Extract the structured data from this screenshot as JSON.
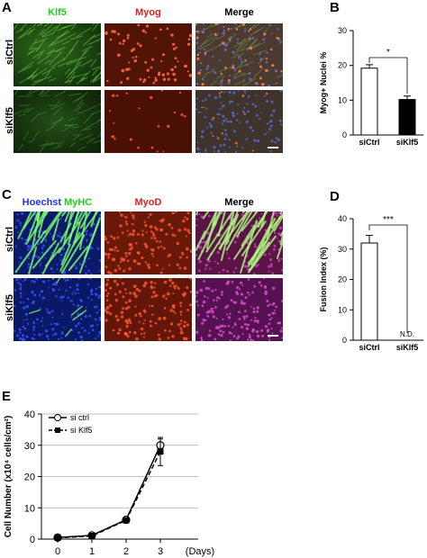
{
  "panelA": {
    "letter": "A",
    "columns": [
      "Klf5",
      "Myog",
      "Merge"
    ],
    "rows": [
      "siCtrl",
      "siKlf5"
    ],
    "colors": {
      "Klf5": "#22cc22",
      "Myog": "#dd2222",
      "Merge": "#000000"
    }
  },
  "panelC": {
    "letter": "C",
    "columns": [
      {
        "parts": [
          {
            "text": "Hoechst",
            "color": "#2233ee"
          },
          {
            "text": " MyHC",
            "color": "#22cc22"
          }
        ]
      },
      {
        "parts": [
          {
            "text": "MyoD",
            "color": "#dd2222"
          }
        ]
      },
      {
        "parts": [
          {
            "text": "Merge",
            "color": "#000000"
          }
        ]
      }
    ],
    "rows": [
      "siCtrl",
      "siKlf5"
    ]
  },
  "panelB": {
    "letter": "B",
    "chart_data": {
      "type": "bar",
      "categories": [
        "siCtrl",
        "siKlf5"
      ],
      "values": [
        19.2,
        10.2
      ],
      "errors": [
        1.0,
        1.0
      ],
      "bar_colors": [
        "#ffffff",
        "#000000"
      ],
      "ylabel": "Myog+ Nuclei %",
      "ylim": [
        0,
        30
      ],
      "yticks": [
        0,
        10,
        20,
        30
      ],
      "significance": "*"
    }
  },
  "panelD": {
    "letter": "D",
    "chart_data": {
      "type": "bar",
      "categories": [
        "siCtrl",
        "siKlf5"
      ],
      "values": [
        32,
        0
      ],
      "errors": [
        2.5,
        0
      ],
      "bar_colors": [
        "#ffffff",
        "#ffffff"
      ],
      "ylabel": "Fusion Index (%)",
      "ylim": [
        0,
        40
      ],
      "yticks": [
        0,
        10,
        20,
        30,
        40
      ],
      "significance": "***",
      "na_label": "N.D."
    }
  },
  "panelE": {
    "letter": "E",
    "chart_data": {
      "type": "line",
      "x": [
        0,
        1,
        2,
        3
      ],
      "xticks": [
        0,
        1,
        2,
        3
      ],
      "xlabel": "(Days)",
      "ylabel": "Cell Number (x10⁴ cells/cm²)",
      "ylim": [
        0,
        40
      ],
      "yticks": [
        0,
        10,
        20,
        30,
        40
      ],
      "grid": true,
      "legend": "top-left",
      "series": [
        {
          "name": "si ctrl",
          "values": [
            0.5,
            1.2,
            6.2,
            30
          ],
          "errors": [
            0.3,
            0.3,
            0.5,
            2.0
          ],
          "marker": "circle-open",
          "dash": "solid"
        },
        {
          "name": "si Klf5",
          "values": [
            0.4,
            1.0,
            6.0,
            28
          ],
          "errors": [
            0.3,
            0.3,
            0.5,
            4.5
          ],
          "marker": "square-filled",
          "dash": "dashed"
        }
      ]
    }
  }
}
